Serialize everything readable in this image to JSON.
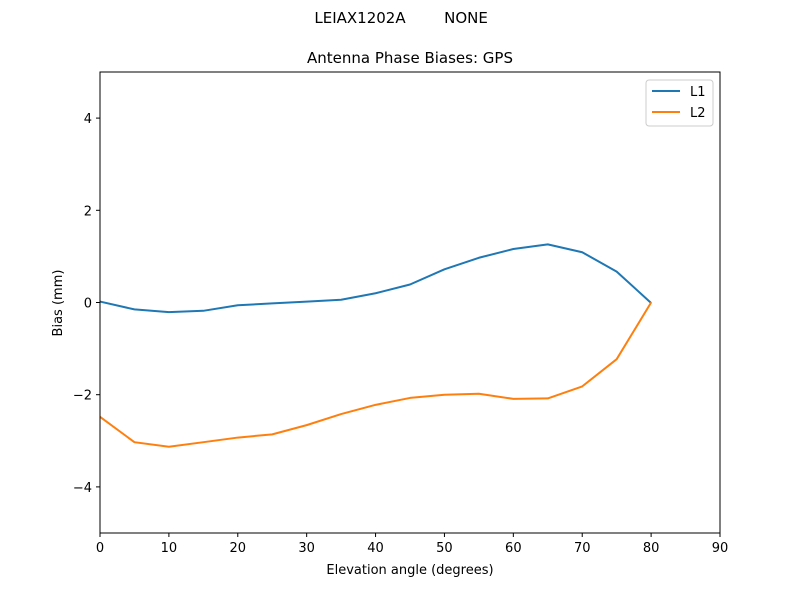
{
  "figure": {
    "suptitle_left": "LEIAX1202A",
    "suptitle_right": "NONE"
  },
  "chart_data": {
    "type": "line",
    "title": "Antenna Phase Biases: GPS",
    "xlabel": "Elevation angle (degrees)",
    "ylabel": "Bias (mm)",
    "xlim": [
      0,
      90
    ],
    "ylim": [
      -5,
      5
    ],
    "xticks": [
      0,
      10,
      20,
      30,
      40,
      50,
      60,
      70,
      80,
      90
    ],
    "yticks": [
      -4,
      -2,
      0,
      2,
      4
    ],
    "ytick_labels": [
      "−4",
      "−2",
      "0",
      "2",
      "4"
    ],
    "grid": false,
    "legend_position": "top-right",
    "x": [
      0,
      5,
      10,
      15,
      20,
      25,
      30,
      35,
      40,
      45,
      50,
      55,
      60,
      65,
      70,
      75,
      80
    ],
    "series": [
      {
        "name": "L1",
        "color": "#1f77b4",
        "values": [
          0.02,
          -0.15,
          -0.21,
          -0.18,
          -0.06,
          -0.02,
          0.02,
          0.06,
          0.2,
          0.39,
          0.72,
          0.97,
          1.16,
          1.26,
          1.09,
          0.67,
          -0.01
        ]
      },
      {
        "name": "L2",
        "color": "#ff7f0e",
        "values": [
          -2.48,
          -3.03,
          -3.13,
          -3.03,
          -2.93,
          -2.86,
          -2.66,
          -2.42,
          -2.22,
          -2.07,
          -2.0,
          -1.98,
          -2.09,
          -2.08,
          -1.82,
          -1.23,
          0.0
        ]
      }
    ]
  }
}
